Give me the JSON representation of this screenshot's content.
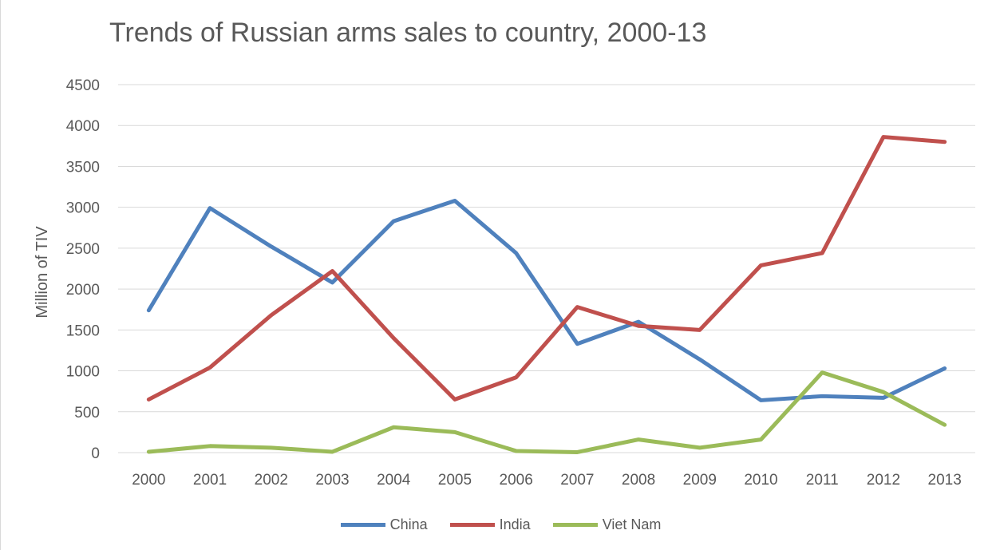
{
  "chart_data": {
    "type": "line",
    "title": "Trends of Russian arms sales to country, 2000-13",
    "xlabel": "",
    "ylabel": "Million of TIV",
    "ylim": [
      0,
      4500
    ],
    "yticks": [
      0,
      500,
      1000,
      1500,
      2000,
      2500,
      3000,
      3500,
      4000,
      4500
    ],
    "grid": true,
    "legend_position": "bottom",
    "categories": [
      "2000",
      "2001",
      "2002",
      "2003",
      "2004",
      "2005",
      "2006",
      "2007",
      "2008",
      "2009",
      "2010",
      "2011",
      "2012",
      "2013"
    ],
    "series": [
      {
        "name": "China",
        "color": "#4f81bd",
        "values": [
          1740,
          2990,
          2520,
          2080,
          2830,
          3080,
          2440,
          1330,
          1600,
          1140,
          640,
          690,
          670,
          1030
        ]
      },
      {
        "name": "India",
        "color": "#c0504d",
        "values": [
          650,
          1040,
          1680,
          2220,
          1400,
          650,
          920,
          1780,
          1550,
          1500,
          2290,
          2440,
          3860,
          3800
        ]
      },
      {
        "name": "Viet Nam",
        "color": "#9bbb59",
        "values": [
          10,
          80,
          60,
          10,
          310,
          250,
          20,
          5,
          160,
          60,
          160,
          980,
          740,
          340
        ]
      }
    ]
  }
}
